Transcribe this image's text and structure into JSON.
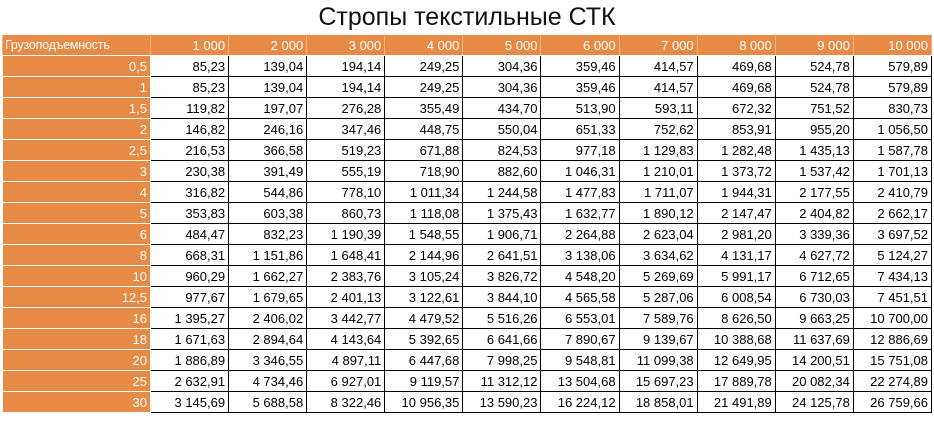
{
  "title": "Стропы текстильные СТК",
  "table": {
    "corner_label": "Грузоподъемность",
    "columns": [
      "1 000",
      "2 000",
      "3 000",
      "4 000",
      "5 000",
      "6 000",
      "7 000",
      "8 000",
      "9 000",
      "10 000"
    ],
    "rows": [
      {
        "label": "0,5",
        "values": [
          "85,23",
          "139,04",
          "194,14",
          "249,25",
          "304,36",
          "359,46",
          "414,57",
          "469,68",
          "524,78",
          "579,89"
        ]
      },
      {
        "label": "1",
        "values": [
          "85,23",
          "139,04",
          "194,14",
          "249,25",
          "304,36",
          "359,46",
          "414,57",
          "469,68",
          "524,78",
          "579,89"
        ]
      },
      {
        "label": "1,5",
        "values": [
          "119,82",
          "197,07",
          "276,28",
          "355,49",
          "434,70",
          "513,90",
          "593,11",
          "672,32",
          "751,52",
          "830,73"
        ]
      },
      {
        "label": "2",
        "values": [
          "146,82",
          "246,16",
          "347,46",
          "448,75",
          "550,04",
          "651,33",
          "752,62",
          "853,91",
          "955,20",
          "1 056,50"
        ]
      },
      {
        "label": "2,5",
        "values": [
          "216,53",
          "366,58",
          "519,23",
          "671,88",
          "824,53",
          "977,18",
          "1 129,83",
          "1 282,48",
          "1 435,13",
          "1 587,78"
        ]
      },
      {
        "label": "3",
        "values": [
          "230,38",
          "391,49",
          "555,19",
          "718,90",
          "882,60",
          "1 046,31",
          "1 210,01",
          "1 373,72",
          "1 537,42",
          "1 701,13"
        ]
      },
      {
        "label": "4",
        "values": [
          "316,82",
          "544,86",
          "778,10",
          "1 011,34",
          "1 244,58",
          "1 477,83",
          "1 711,07",
          "1 944,31",
          "2 177,55",
          "2 410,79"
        ]
      },
      {
        "label": "5",
        "values": [
          "353,83",
          "603,38",
          "860,73",
          "1 118,08",
          "1 375,43",
          "1 632,77",
          "1 890,12",
          "2 147,47",
          "2 404,82",
          "2 662,17"
        ]
      },
      {
        "label": "6",
        "values": [
          "484,47",
          "832,23",
          "1 190,39",
          "1 548,55",
          "1 906,71",
          "2 264,88",
          "2 623,04",
          "2 981,20",
          "3 339,36",
          "3 697,52"
        ]
      },
      {
        "label": "8",
        "values": [
          "668,31",
          "1 151,86",
          "1 648,41",
          "2 144,96",
          "2 641,51",
          "3 138,06",
          "3 634,62",
          "4 131,17",
          "4 627,72",
          "5 124,27"
        ]
      },
      {
        "label": "10",
        "values": [
          "960,29",
          "1 662,27",
          "2 383,76",
          "3 105,24",
          "3 826,72",
          "4 548,20",
          "5 269,69",
          "5 991,17",
          "6 712,65",
          "7 434,13"
        ]
      },
      {
        "label": "12,5",
        "values": [
          "977,67",
          "1 679,65",
          "2 401,13",
          "3 122,61",
          "3 844,10",
          "4 565,58",
          "5 287,06",
          "6 008,54",
          "6 730,03",
          "7 451,51"
        ]
      },
      {
        "label": "16",
        "values": [
          "1 395,27",
          "2 406,02",
          "3 442,77",
          "4 479,52",
          "5 516,26",
          "6 553,01",
          "7 589,76",
          "8 626,50",
          "9 663,25",
          "10 700,00"
        ]
      },
      {
        "label": "18",
        "values": [
          "1 671,63",
          "2 894,64",
          "4 143,64",
          "5 392,65",
          "6 641,66",
          "7 890,67",
          "9 139,67",
          "10 388,68",
          "11 637,69",
          "12 886,69"
        ]
      },
      {
        "label": "20",
        "values": [
          "1 886,89",
          "3 346,55",
          "4 897,11",
          "6 447,68",
          "7 998,25",
          "9 548,81",
          "11 099,38",
          "12 649,95",
          "14 200,51",
          "15 751,08"
        ]
      },
      {
        "label": "25",
        "values": [
          "2 632,91",
          "4 734,46",
          "6 927,01",
          "9 119,57",
          "11 312,12",
          "13 504,68",
          "15 697,23",
          "17 889,78",
          "20 082,34",
          "22 274,89"
        ]
      },
      {
        "label": "30",
        "values": [
          "3 145,69",
          "5 688,58",
          "8 322,46",
          "10 956,35",
          "13 590,23",
          "16 224,12",
          "18 858,01",
          "21 491,89",
          "24 125,78",
          "26 759,66"
        ]
      }
    ]
  }
}
